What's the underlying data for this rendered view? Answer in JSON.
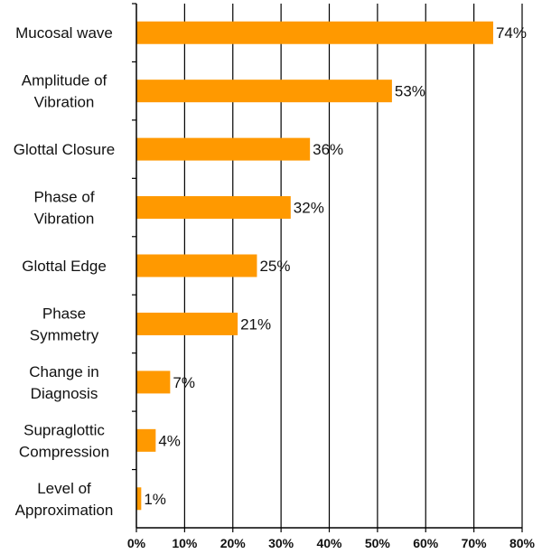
{
  "chart_data": {
    "type": "bar",
    "orientation": "horizontal",
    "categories": [
      "Mucosal wave",
      "Amplitude of Vibration",
      "Glottal Closure",
      "Phase of Vibration",
      "Glottal Edge",
      "Phase Symmetry",
      "Change in Diagnosis",
      "Supraglottic Compression",
      "Level of Approximation"
    ],
    "category_lines": [
      [
        "Mucosal wave"
      ],
      [
        "Amplitude of",
        "Vibration"
      ],
      [
        "Glottal Closure"
      ],
      [
        "Phase of",
        "Vibration"
      ],
      [
        "Glottal Edge"
      ],
      [
        "Phase",
        "Symmetry"
      ],
      [
        "Change in",
        "Diagnosis"
      ],
      [
        "Supraglottic",
        "Compression"
      ],
      [
        "Level of",
        "Approximation"
      ]
    ],
    "values": [
      74,
      53,
      36,
      32,
      25,
      21,
      7,
      4,
      1
    ],
    "value_labels": [
      "74%",
      "53%",
      "36%",
      "32%",
      "25%",
      "21%",
      "7%",
      "4%",
      "1%"
    ],
    "xlim": [
      0,
      80
    ],
    "xticks": [
      0,
      10,
      20,
      30,
      40,
      50,
      60,
      70,
      80
    ],
    "xtick_labels": [
      "0%",
      "10%",
      "20%",
      "30%",
      "40%",
      "50%",
      "60%",
      "70%",
      "80%"
    ],
    "grid": true,
    "bar_color": "#FF9900",
    "title": "",
    "xlabel": "",
    "ylabel": ""
  }
}
